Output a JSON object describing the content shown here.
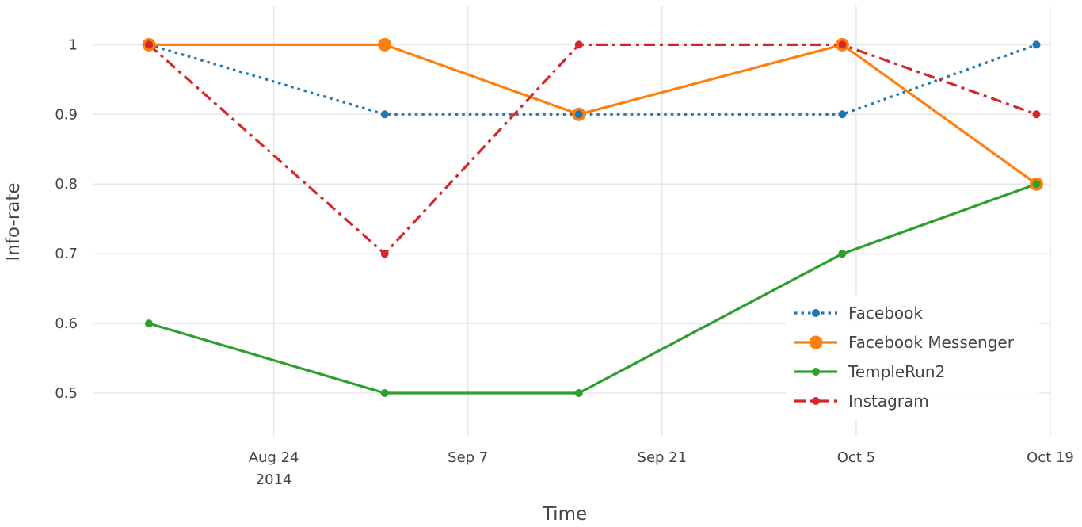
{
  "chart_data": {
    "type": "line",
    "xlabel": "Time",
    "ylabel": "Info-rate",
    "x_axis_type": "date",
    "xlim": [
      "2014-08-11",
      "2014-10-19"
    ],
    "ylim": [
      0.45,
      1.03
    ],
    "x_ticks": [
      {
        "date": "2014-08-24",
        "label": "Aug 24",
        "sublabel": "2014"
      },
      {
        "date": "2014-09-07",
        "label": "Sep 7",
        "sublabel": ""
      },
      {
        "date": "2014-09-21",
        "label": "Sep 21",
        "sublabel": ""
      },
      {
        "date": "2014-10-05",
        "label": "Oct 5",
        "sublabel": ""
      },
      {
        "date": "2014-10-19",
        "label": "Oct 19",
        "sublabel": ""
      }
    ],
    "y_ticks": [
      {
        "value": 0.5,
        "label": "0.5"
      },
      {
        "value": 0.6,
        "label": "0.6"
      },
      {
        "value": 0.7,
        "label": "0.7"
      },
      {
        "value": 0.8,
        "label": "0.8"
      },
      {
        "value": 0.9,
        "label": "0.9"
      },
      {
        "value": 1.0,
        "label": "1"
      }
    ],
    "x": [
      "2014-08-15",
      "2014-09-01",
      "2014-09-15",
      "2014-10-04",
      "2014-10-18"
    ],
    "grid": true,
    "legend_position": "bottom-right",
    "series": [
      {
        "name": "Facebook",
        "values": [
          1.0,
          0.9,
          0.9,
          0.9,
          1.0
        ],
        "color": "#1f77b4",
        "dash": "dot",
        "marker": "small"
      },
      {
        "name": "Facebook Messenger",
        "values": [
          1.0,
          1.0,
          0.9,
          1.0,
          0.8
        ],
        "color": "#ff7f0e",
        "dash": "solid",
        "marker": "large"
      },
      {
        "name": "TempleRun2",
        "values": [
          0.6,
          0.5,
          0.5,
          0.7,
          0.8
        ],
        "color": "#2ca02c",
        "dash": "solid",
        "marker": "small"
      },
      {
        "name": "Instagram",
        "values": [
          1.0,
          0.7,
          1.0,
          1.0,
          0.9
        ],
        "color": "#d62728",
        "dash": "dashdot",
        "marker": "small"
      }
    ]
  }
}
